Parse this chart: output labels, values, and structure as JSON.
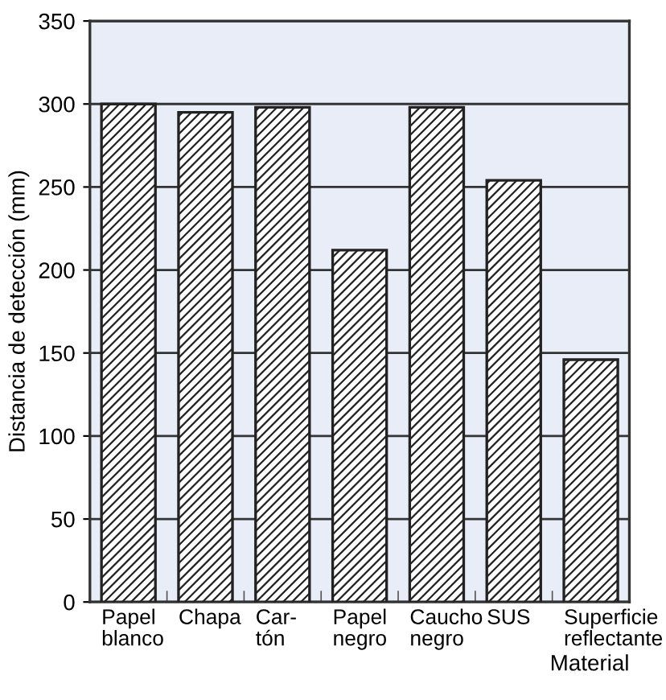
{
  "chart_data": {
    "type": "bar",
    "ylabel": "Distancia de detección (mm)",
    "xlabel": "Material",
    "categories": [
      "Papel\nblanco",
      "Chapa",
      "Car-\ntón",
      "Papel\nnegro",
      "Caucho\nnegro",
      "SUS",
      "Superficie\nreflectante"
    ],
    "values": [
      300,
      295,
      298,
      212,
      298,
      254,
      146
    ],
    "color": "#222222",
    "ylim": [
      0,
      350
    ],
    "yticks": [
      0,
      50,
      100,
      150,
      200,
      250,
      300,
      350
    ],
    "grid": "y"
  }
}
